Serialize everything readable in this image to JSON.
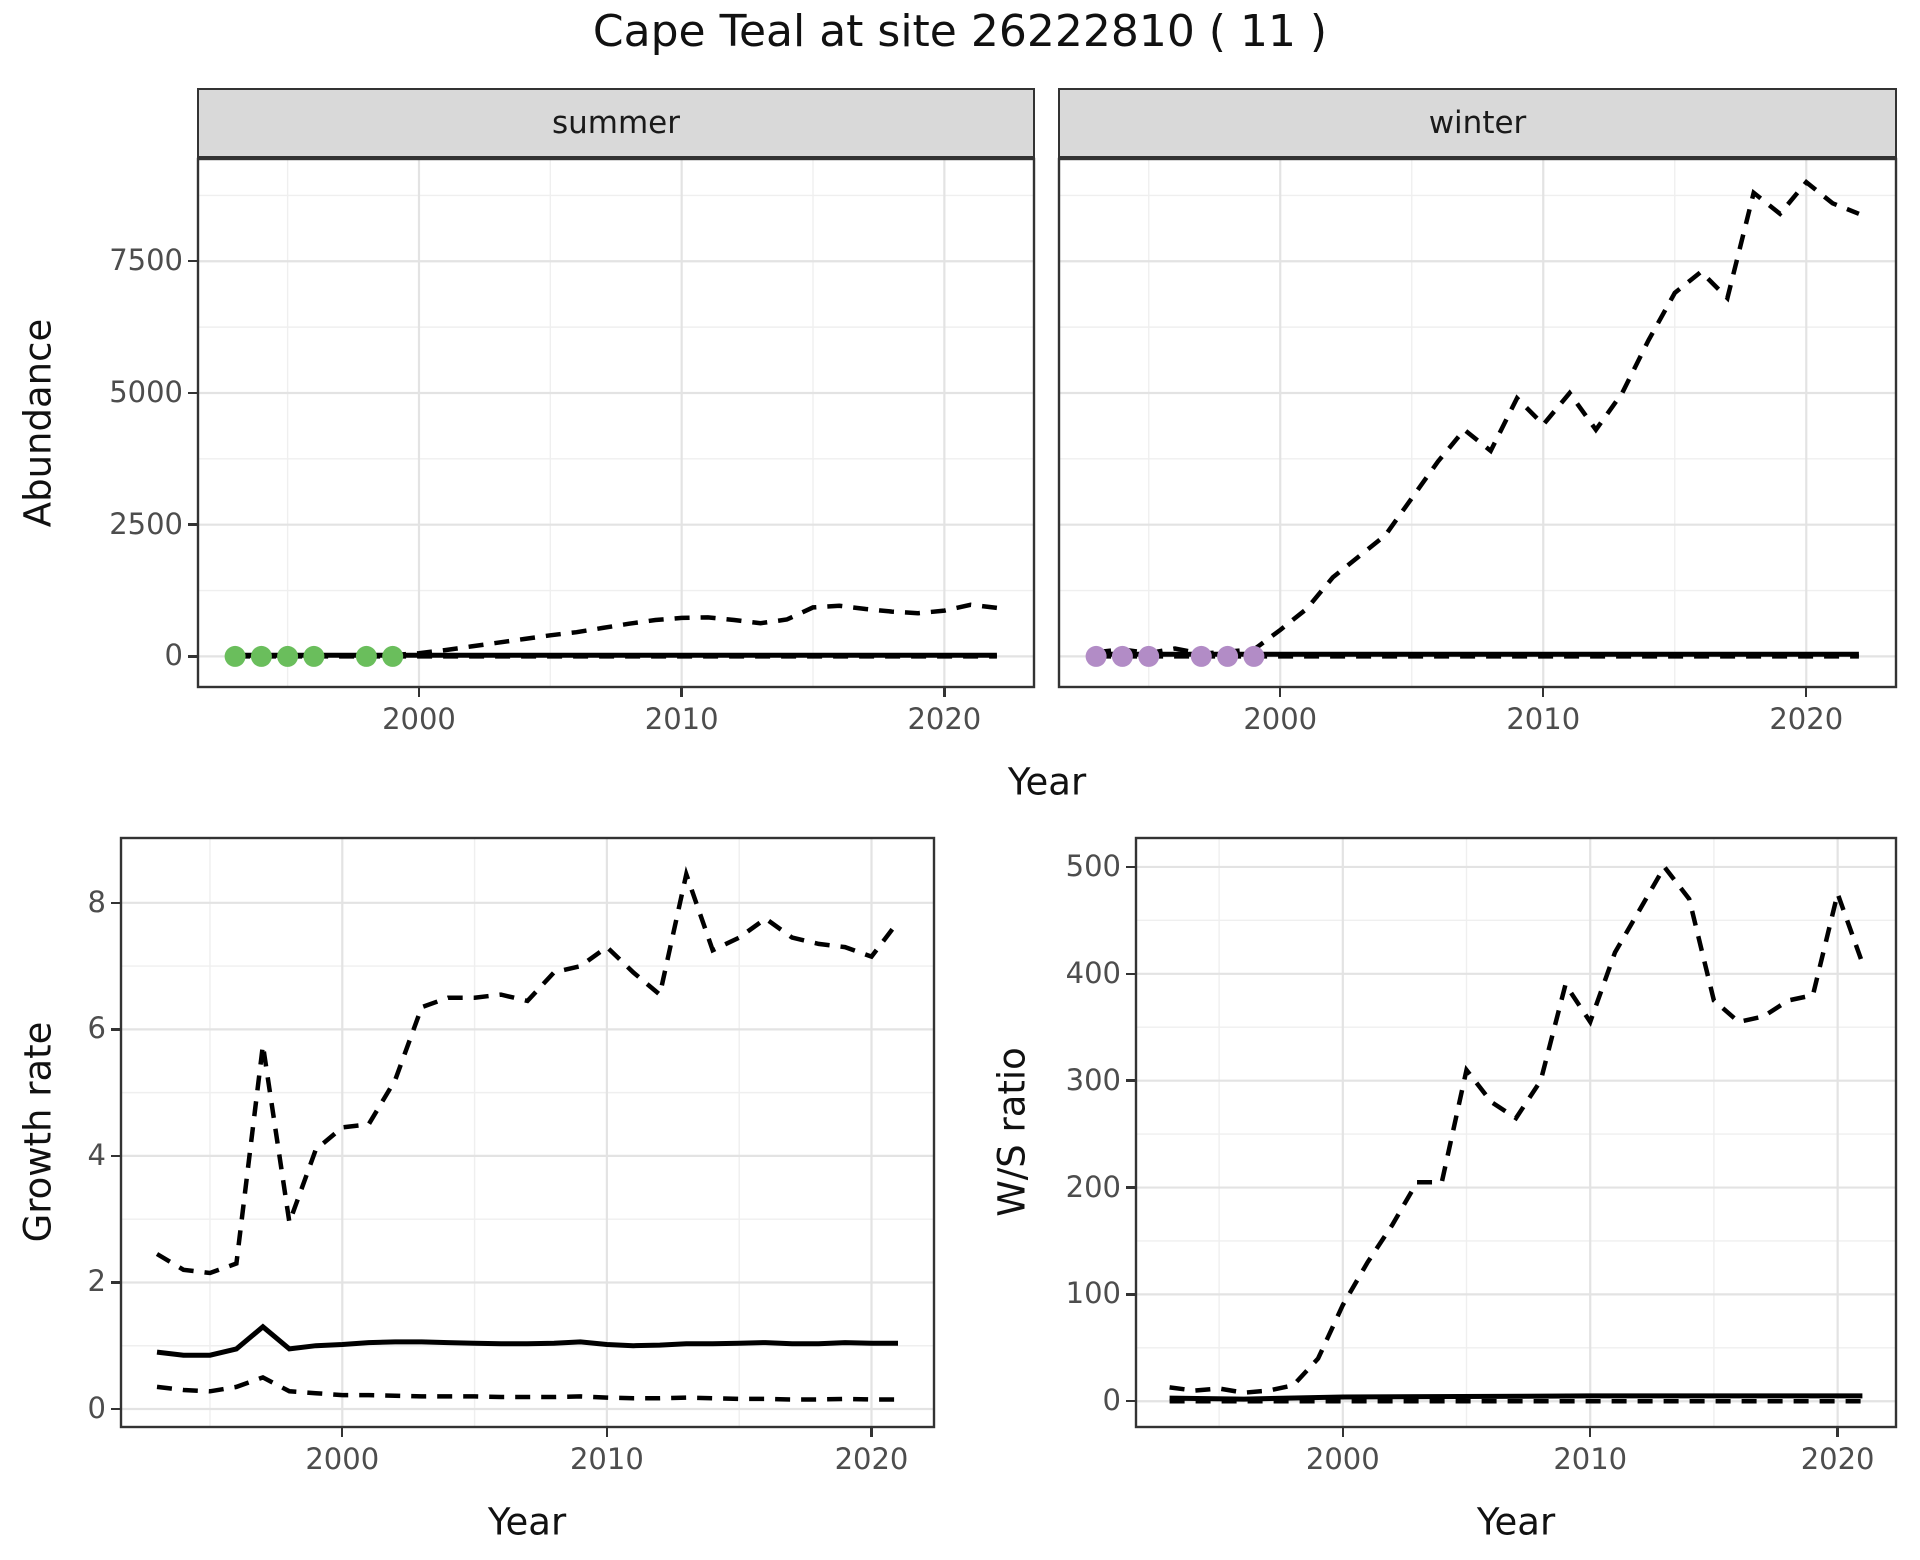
{
  "title": "Cape Teal at site 26222810 ( 11 )",
  "axis_titles": {
    "abundance": "Abundance",
    "year_top": "Year",
    "growth_rate": "Growth rate",
    "year_bottom_left": "Year",
    "ws_ratio": "W/S ratio",
    "year_bottom_right": "Year"
  },
  "colors": {
    "line": "#000000",
    "summer_point": "#6abe5c",
    "winter_point": "#b28cc6",
    "grid_major": "#e3e3e3",
    "grid_minor": "#efefef",
    "strip_bg": "#d9d9d9",
    "panel_border": "#333333",
    "tick_text": "#4d4d4d"
  },
  "chart_data": [
    {
      "id": "abundance-summer",
      "type": "line",
      "facet_label": "summer",
      "xlabel": "Year",
      "ylabel": "Abundance",
      "xlim": [
        1991.55,
        2023.45
      ],
      "ylim": [
        -600,
        9460
      ],
      "x_ticks": [
        2000,
        2010,
        2020
      ],
      "x_minor": [
        1995,
        2005,
        2015
      ],
      "y_ticks": [
        0,
        2500,
        5000,
        7500
      ],
      "y_minor": [
        1250,
        3750,
        6250,
        8750
      ],
      "show_y_axis": true,
      "years": [
        1993,
        1994,
        1995,
        1996,
        1997,
        1998,
        1999,
        2000,
        2001,
        2002,
        2003,
        2004,
        2005,
        2006,
        2007,
        2008,
        2009,
        2010,
        2011,
        2012,
        2013,
        2014,
        2015,
        2016,
        2017,
        2018,
        2019,
        2020,
        2021,
        2022
      ],
      "series": [
        {
          "name": "upper-ci",
          "style": "dashed",
          "y": [
            5,
            5,
            5,
            5,
            8,
            10,
            25,
            60,
            120,
            190,
            260,
            330,
            400,
            460,
            540,
            620,
            690,
            730,
            740,
            690,
            630,
            700,
            930,
            960,
            900,
            850,
            820,
            870,
            980,
            920
          ]
        },
        {
          "name": "lower-ci",
          "style": "dashed",
          "x": [
            1993,
            2022
          ],
          "y": [
            0,
            0
          ]
        },
        {
          "name": "estimate",
          "style": "solid",
          "x": [
            1993,
            2022
          ],
          "y": [
            20,
            20
          ]
        }
      ],
      "points": {
        "name": "observed-zero-counts",
        "color": "#6abe5c",
        "x": [
          1993,
          1994,
          1995,
          1996,
          1998,
          1999
        ],
        "y": [
          0,
          0,
          0,
          0,
          0,
          0
        ]
      }
    },
    {
      "id": "abundance-winter",
      "type": "line",
      "facet_label": "winter",
      "xlabel": "Year",
      "ylabel": "Abundance",
      "xlim": [
        1991.55,
        2023.45
      ],
      "ylim": [
        -600,
        9460
      ],
      "x_ticks": [
        2000,
        2010,
        2020
      ],
      "x_minor": [
        1995,
        2005,
        2015
      ],
      "y_ticks": [
        0,
        2500,
        5000,
        7500
      ],
      "y_minor": [
        1250,
        3750,
        6250,
        8750
      ],
      "show_y_axis": false,
      "years": [
        1993,
        1994,
        1995,
        1996,
        1997,
        1998,
        1999,
        2000,
        2001,
        2002,
        2003,
        2004,
        2005,
        2006,
        2007,
        2008,
        2009,
        2010,
        2011,
        2012,
        2013,
        2014,
        2015,
        2016,
        2017,
        2018,
        2019,
        2020,
        2021,
        2022
      ],
      "series": [
        {
          "name": "upper-ci",
          "style": "dashed",
          "y": [
            80,
            130,
            60,
            150,
            50,
            90,
            130,
            500,
            900,
            1500,
            1900,
            2300,
            3000,
            3700,
            4300,
            3900,
            4900,
            4400,
            5000,
            4300,
            5000,
            6000,
            6900,
            7300,
            6800,
            8800,
            8400,
            9000,
            8600,
            8400
          ]
        },
        {
          "name": "lower-ci",
          "style": "dashed",
          "x": [
            1993,
            2022
          ],
          "y": [
            0,
            0
          ]
        },
        {
          "name": "estimate",
          "style": "solid",
          "x": [
            1993,
            2022
          ],
          "y": [
            40,
            40
          ]
        }
      ],
      "points": {
        "name": "observed-zero-counts",
        "color": "#b28cc6",
        "x": [
          1993,
          1994,
          1995,
          1997,
          1998,
          1999
        ],
        "y": [
          0,
          0,
          0,
          0,
          0,
          0
        ]
      }
    },
    {
      "id": "growth-rate",
      "type": "line",
      "facet_label": null,
      "xlabel": "Year",
      "ylabel": "Growth rate",
      "xlim": [
        1991.6,
        2022.4
      ],
      "ylim": [
        -0.3,
        9.04
      ],
      "x_ticks": [
        2000,
        2010,
        2020
      ],
      "x_minor": [
        1995,
        2005,
        2015
      ],
      "y_ticks": [
        0,
        2,
        4,
        6,
        8
      ],
      "y_minor": [
        1,
        3,
        5,
        7
      ],
      "show_y_axis": true,
      "years": [
        1993,
        1994,
        1995,
        1996,
        1997,
        1998,
        1999,
        2000,
        2001,
        2002,
        2003,
        2004,
        2005,
        2006,
        2007,
        2008,
        2009,
        2010,
        2011,
        2012,
        2013,
        2014,
        2015,
        2016,
        2017,
        2018,
        2019,
        2020,
        2021
      ],
      "series": [
        {
          "name": "upper-ci",
          "style": "dashed",
          "y": [
            2.45,
            2.2,
            2.15,
            2.3,
            5.75,
            2.95,
            4.1,
            4.45,
            4.5,
            5.2,
            6.35,
            6.5,
            6.5,
            6.55,
            6.45,
            6.9,
            7.0,
            7.3,
            6.9,
            6.55,
            8.45,
            7.25,
            7.45,
            7.75,
            7.45,
            7.35,
            7.3,
            7.15,
            7.7
          ]
        },
        {
          "name": "lower-ci",
          "style": "dashed",
          "y": [
            0.35,
            0.3,
            0.28,
            0.35,
            0.5,
            0.28,
            0.25,
            0.22,
            0.22,
            0.21,
            0.2,
            0.2,
            0.2,
            0.19,
            0.19,
            0.19,
            0.2,
            0.18,
            0.17,
            0.17,
            0.18,
            0.17,
            0.16,
            0.16,
            0.15,
            0.15,
            0.16,
            0.15,
            0.15
          ]
        },
        {
          "name": "estimate",
          "style": "solid",
          "y": [
            0.9,
            0.85,
            0.85,
            0.95,
            1.3,
            0.95,
            1.0,
            1.02,
            1.05,
            1.06,
            1.06,
            1.05,
            1.04,
            1.03,
            1.03,
            1.04,
            1.06,
            1.02,
            1.0,
            1.01,
            1.03,
            1.03,
            1.04,
            1.05,
            1.03,
            1.03,
            1.05,
            1.04,
            1.04
          ]
        }
      ],
      "points": null
    },
    {
      "id": "ws-ratio",
      "type": "line",
      "facet_label": null,
      "xlabel": "Year",
      "ylabel": "W/S ratio",
      "xlim": [
        1991.6,
        2022.4
      ],
      "ylim": [
        -25,
        528
      ],
      "x_ticks": [
        2000,
        2010,
        2020
      ],
      "x_minor": [
        1995,
        2005,
        2015
      ],
      "y_ticks": [
        0,
        100,
        200,
        300,
        400,
        500
      ],
      "y_minor": [
        50,
        150,
        250,
        350,
        450
      ],
      "show_y_axis": true,
      "years": [
        1993,
        1994,
        1995,
        1996,
        1997,
        1998,
        1999,
        2000,
        2001,
        2002,
        2003,
        2004,
        2005,
        2006,
        2007,
        2008,
        2009,
        2010,
        2011,
        2012,
        2013,
        2014,
        2015,
        2016,
        2017,
        2018,
        2019,
        2020,
        2021
      ],
      "series": [
        {
          "name": "upper-ci",
          "style": "dashed",
          "y": [
            13,
            10,
            12,
            8,
            10,
            15,
            40,
            90,
            130,
            165,
            205,
            205,
            310,
            280,
            265,
            300,
            390,
            355,
            420,
            460,
            500,
            470,
            375,
            355,
            360,
            375,
            380,
            475,
            410
          ]
        },
        {
          "name": "lower-ci",
          "style": "dashed",
          "x": [
            1993,
            2021
          ],
          "y": [
            0,
            0
          ]
        },
        {
          "name": "estimate",
          "style": "solid",
          "x": [
            1993,
            1996,
            2000,
            2010,
            2021
          ],
          "y": [
            3,
            2,
            4,
            5,
            5
          ]
        }
      ],
      "points": null
    }
  ]
}
